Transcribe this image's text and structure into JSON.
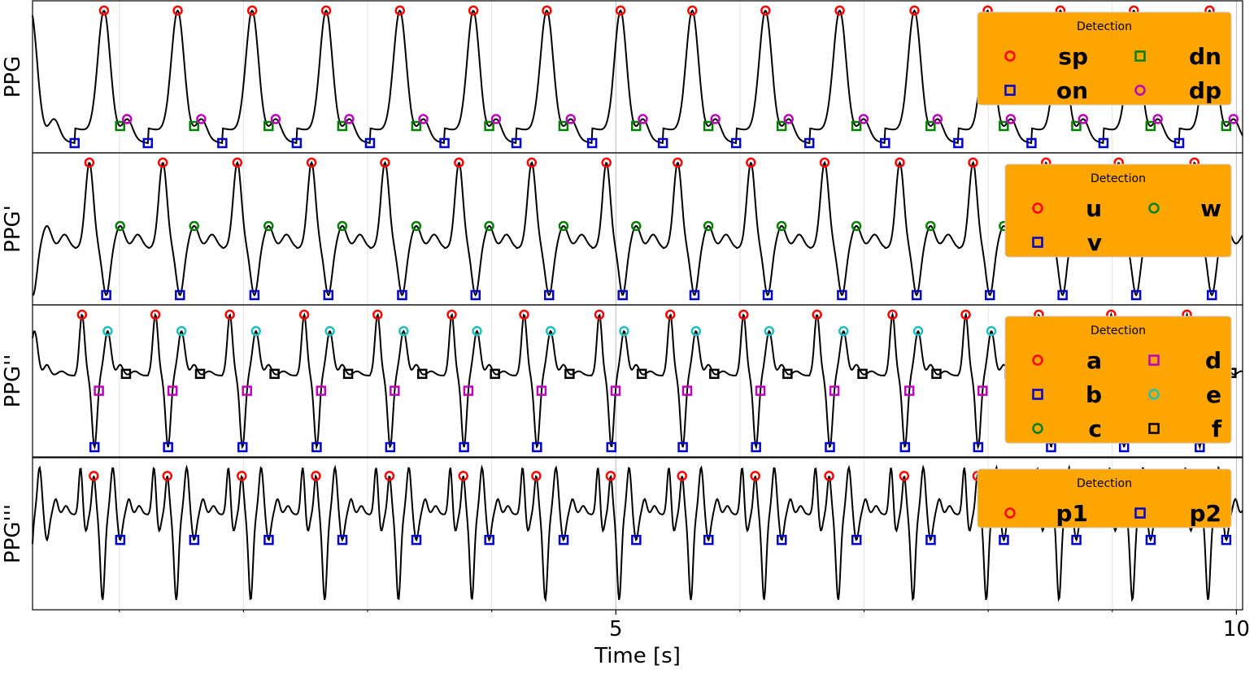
{
  "chart_data": {
    "type": "line",
    "xlabel": "Time [s]",
    "xlim": [
      0.3,
      10.05
    ],
    "xticks": [
      5,
      10
    ],
    "xtick_labels": [
      "5",
      "10"
    ],
    "grid": "vertical",
    "minor_grid_x": [
      1,
      2,
      3,
      4,
      6,
      7,
      8,
      9
    ],
    "colors": {
      "signal": "#000000",
      "red": "#ff0000",
      "blue": "#0000cc",
      "green": "#008000",
      "magenta": "#bf00bf",
      "cyan": "#1fbfbf",
      "black": "#000000",
      "legend_bg": "#ffa500"
    },
    "beat_onsets": [
      0.64,
      1.23,
      1.83,
      2.43,
      3.02,
      3.62,
      4.2,
      4.81,
      5.38,
      5.97,
      6.56,
      7.17,
      7.76,
      8.35,
      8.93,
      9.54
    ],
    "panels": [
      {
        "ylabel": "PPG",
        "signal": "ppg",
        "legend_title": "Detection",
        "legend": [
          {
            "label": "sp",
            "color": "red",
            "marker": "o"
          },
          {
            "label": "dn",
            "color": "green",
            "marker": "s"
          },
          {
            "label": "on",
            "color": "blue",
            "marker": "s"
          },
          {
            "label": "dp",
            "color": "magenta",
            "marker": "o"
          }
        ]
      },
      {
        "ylabel": "PPG'",
        "signal": "d1",
        "legend_title": "Detection",
        "legend": [
          {
            "label": "u",
            "color": "red",
            "marker": "o"
          },
          {
            "label": "w",
            "color": "green",
            "marker": "o"
          },
          {
            "label": "v",
            "color": "blue",
            "marker": "s"
          }
        ]
      },
      {
        "ylabel": "PPG''",
        "signal": "d2",
        "legend_title": "Detection",
        "legend": [
          {
            "label": "a",
            "color": "red",
            "marker": "o"
          },
          {
            "label": "d",
            "color": "magenta",
            "marker": "s"
          },
          {
            "label": "b",
            "color": "blue",
            "marker": "s"
          },
          {
            "label": "e",
            "color": "cyan",
            "marker": "o"
          },
          {
            "label": "c",
            "color": "green",
            "marker": "o"
          },
          {
            "label": "f",
            "color": "black",
            "marker": "s"
          }
        ]
      },
      {
        "ylabel": "PPG'''",
        "signal": "d3",
        "legend_title": "Detection",
        "legend": [
          {
            "label": "p1",
            "color": "red",
            "marker": "o"
          },
          {
            "label": "p2",
            "color": "blue",
            "marker": "s"
          }
        ]
      }
    ]
  }
}
